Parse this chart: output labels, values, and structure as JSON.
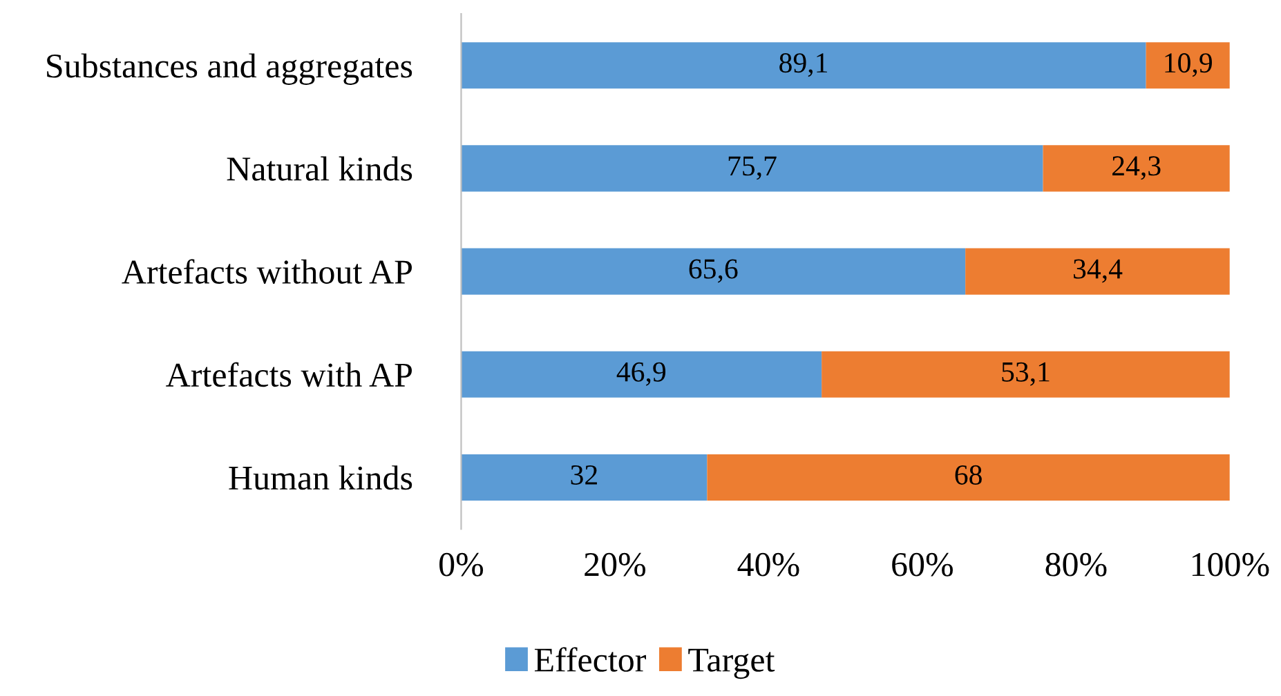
{
  "chart_data": {
    "type": "bar",
    "orientation": "horizontal",
    "stacked": true,
    "categories": [
      "Substances and aggregates",
      "Natural kinds",
      "Artefacts without AP",
      "Artefacts with AP",
      "Human kinds"
    ],
    "series": [
      {
        "name": "Effector",
        "color": "#5b9bd5",
        "values": [
          89.1,
          75.7,
          65.6,
          46.9,
          32
        ],
        "value_labels": [
          "89,1",
          "75,7",
          "65,6",
          "46,9",
          "32"
        ]
      },
      {
        "name": "Target",
        "color": "#ed7d31",
        "values": [
          10.9,
          24.3,
          34.4,
          53.1,
          68
        ],
        "value_labels": [
          "10,9",
          "24,3",
          "34,4",
          "53,1",
          "68"
        ]
      }
    ],
    "xlim": [
      0,
      100
    ],
    "xticks": [
      {
        "value": 0,
        "label": "0%"
      },
      {
        "value": 20,
        "label": "20%"
      },
      {
        "value": 40,
        "label": "40%"
      },
      {
        "value": 60,
        "label": "60%"
      },
      {
        "value": 80,
        "label": "80%"
      },
      {
        "value": 100,
        "label": "100%"
      }
    ],
    "grid": false,
    "legend": "bottom"
  }
}
